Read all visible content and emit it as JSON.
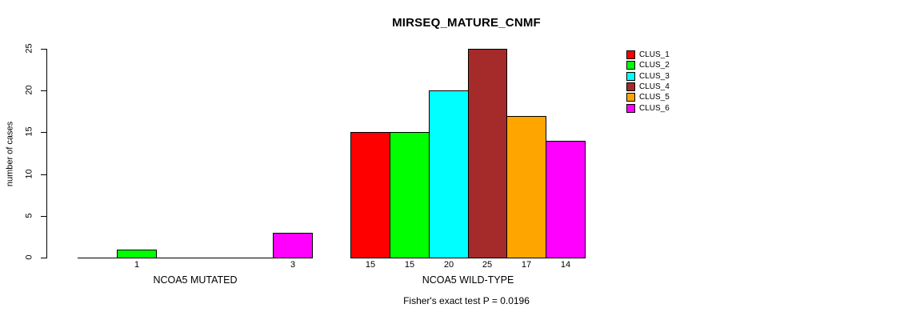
{
  "page": {
    "background": "#ffffff",
    "text_color": "#000000"
  },
  "chart_data": {
    "type": "bar",
    "title": "MIRSEQ_MATURE_CNMF",
    "ylabel": "number of cases",
    "xlabel": "",
    "ylim": [
      0,
      25
    ],
    "yticks": [
      0,
      5,
      10,
      15,
      20,
      25
    ],
    "grid": false,
    "bar_border_color": "#000000",
    "axis_color": "#000000",
    "series_colors": [
      "#FF0000",
      "#00FF00",
      "#00FFFF",
      "#A52A2A",
      "#FFA500",
      "#FF00FF"
    ],
    "legend_position": "top-right",
    "legend": [
      {
        "label": "CLUS_1",
        "color": "#FF0000"
      },
      {
        "label": "CLUS_2",
        "color": "#00FF00"
      },
      {
        "label": "CLUS_3",
        "color": "#00FFFF"
      },
      {
        "label": "CLUS_4",
        "color": "#A52A2A"
      },
      {
        "label": "CLUS_5",
        "color": "#FFA500"
      },
      {
        "label": "CLUS_6",
        "color": "#FF00FF"
      }
    ],
    "groups": [
      {
        "label": "NCOA5 MUTATED",
        "series": [
          "CLUS_1",
          "CLUS_2",
          "CLUS_3",
          "CLUS_4",
          "CLUS_5",
          "CLUS_6"
        ],
        "values": [
          0,
          1,
          0,
          0,
          0,
          3
        ],
        "bar_labels": [
          "",
          "1",
          "",
          "",
          "",
          "3"
        ]
      },
      {
        "label": "NCOA5 WILD-TYPE",
        "series": [
          "CLUS_1",
          "CLUS_2",
          "CLUS_3",
          "CLUS_4",
          "CLUS_5",
          "CLUS_6"
        ],
        "values": [
          15,
          15,
          20,
          25,
          17,
          14
        ],
        "bar_labels": [
          "15",
          "15",
          "20",
          "25",
          "17",
          "14"
        ]
      }
    ],
    "annotation": "Fisher's exact test P = 0.0196"
  }
}
